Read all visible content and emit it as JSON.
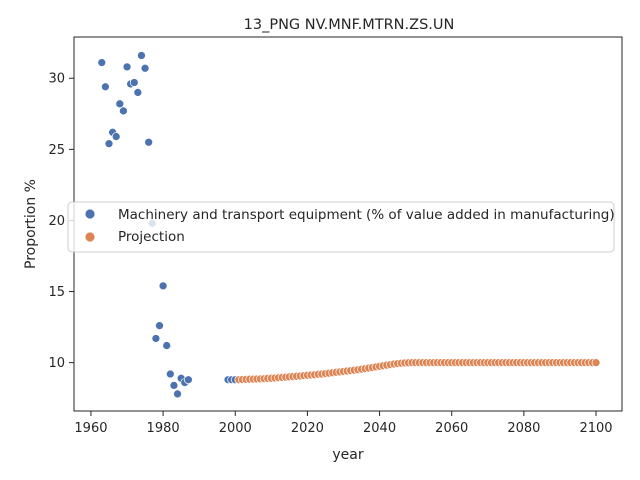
{
  "chart_data": {
    "type": "scatter",
    "title": "13_PNG NV.MNF.MTRN.ZS.UN",
    "xlabel": "year",
    "ylabel": "Proportion %",
    "xlim": [
      1955.3,
      2107.2
    ],
    "ylim": [
      6.6,
      32.9
    ],
    "x_ticks": [
      1960,
      1980,
      2000,
      2020,
      2040,
      2060,
      2080,
      2100
    ],
    "y_ticks": [
      10,
      15,
      20,
      25,
      30
    ],
    "grid": false,
    "legend_position": "center-left",
    "series": [
      {
        "name": "Machinery and transport equipment (% of value added in manufacturing)",
        "color": "#4c72b0",
        "points": [
          [
            1963,
            31.1
          ],
          [
            1964,
            29.4
          ],
          [
            1965,
            25.4
          ],
          [
            1966,
            26.2
          ],
          [
            1967,
            25.9
          ],
          [
            1968,
            28.2
          ],
          [
            1969,
            27.7
          ],
          [
            1970,
            30.8
          ],
          [
            1971,
            29.6
          ],
          [
            1972,
            29.7
          ],
          [
            1973,
            29.0
          ],
          [
            1974,
            31.6
          ],
          [
            1975,
            30.7
          ],
          [
            1976,
            25.5
          ],
          [
            1977,
            19.8
          ],
          [
            1978,
            11.7
          ],
          [
            1979,
            12.6
          ],
          [
            1980,
            15.4
          ],
          [
            1981,
            11.2
          ],
          [
            1982,
            9.2
          ],
          [
            1983,
            8.4
          ],
          [
            1984,
            7.8
          ],
          [
            1985,
            8.9
          ],
          [
            1986,
            8.6
          ],
          [
            1987,
            8.8
          ],
          [
            1998,
            8.8
          ],
          [
            1999,
            8.8
          ],
          [
            2000,
            8.8
          ],
          [
            2001,
            8.8
          ]
        ]
      },
      {
        "name": "Projection",
        "color": "#dd8452",
        "x_start": 2001,
        "y_start": [
          8.8,
          8.81,
          8.82,
          8.83,
          8.84,
          8.85,
          8.86,
          8.87,
          8.89,
          8.9,
          8.92,
          8.94,
          8.96,
          8.98,
          9.0,
          9.02,
          9.04,
          9.06,
          9.09,
          9.11,
          9.13,
          9.15,
          9.18,
          9.2,
          9.23,
          9.26,
          9.29,
          9.32,
          9.35,
          9.38,
          9.41,
          9.44,
          9.47,
          9.5,
          9.54,
          9.58,
          9.62,
          9.66,
          9.7,
          9.74,
          9.78,
          9.82,
          9.86,
          9.9,
          9.93,
          9.96,
          9.98,
          9.99,
          10.0,
          10.0
        ],
        "y_tail": 10.0,
        "x_end": 2100
      }
    ]
  }
}
